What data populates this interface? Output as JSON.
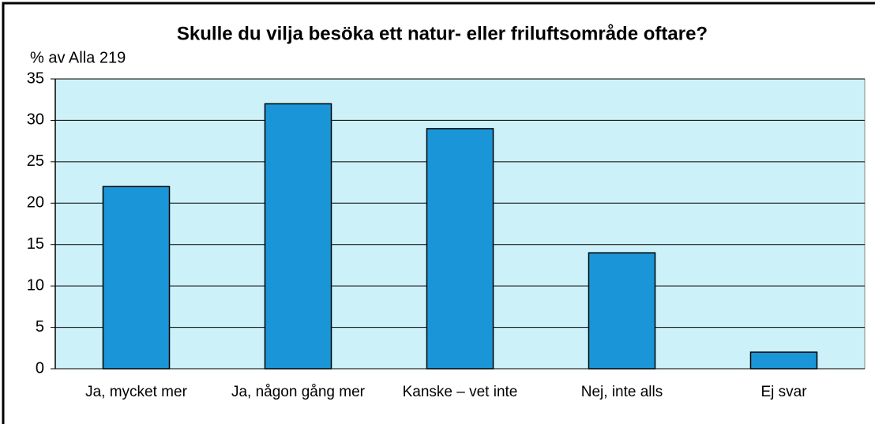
{
  "chart_data": {
    "type": "bar",
    "title": "Skulle du vilja besöka ett natur- eller friluftsområde oftare?",
    "y_label": "% av Alla 219",
    "categories": [
      "Ja, mycket mer",
      "Ja, någon gång mer",
      "Kanske – vet inte",
      "Nej, inte alls",
      "Ej svar"
    ],
    "values": [
      22,
      32,
      29,
      14,
      2
    ],
    "color": "#1a96d8",
    "ylim": [
      0,
      35
    ],
    "yticks": [
      0,
      5,
      10,
      15,
      20,
      25,
      30,
      35
    ],
    "grid": true
  }
}
